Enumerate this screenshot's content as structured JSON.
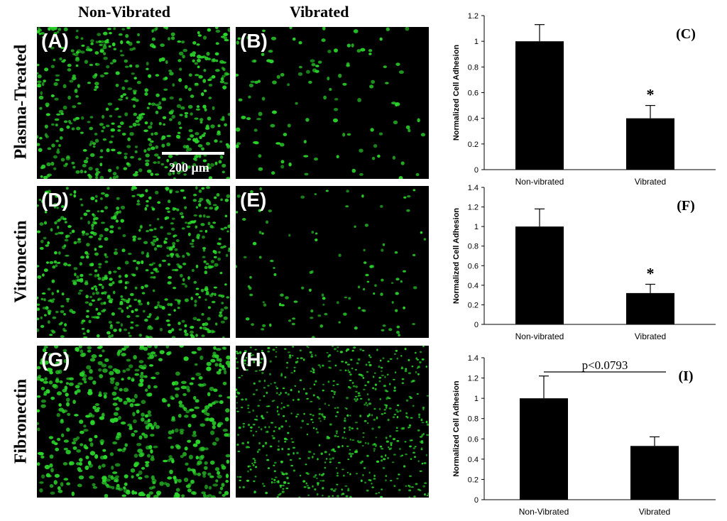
{
  "columns": {
    "non_vibrated": "Non-Vibrated",
    "vibrated": "Vibrated"
  },
  "rows": {
    "plasma": "Plasma-Treated",
    "vitronectin": "Vitronectin",
    "fibronectin": "Fibronectin"
  },
  "panels": {
    "a": "(A)",
    "b": "(B)",
    "d": "(D)",
    "e": "(E)",
    "g": "(G)",
    "h": "(H)"
  },
  "scale_bar": "200 μm",
  "colors": {
    "cells": "#2bd62b",
    "background": "#000000",
    "bars": "#000000"
  },
  "chart_data": [
    {
      "type": "bar",
      "panel_label": "(C)",
      "categories": [
        "Non-vibrated",
        "Vibrated"
      ],
      "values": [
        1.0,
        0.4
      ],
      "errors": [
        0.13,
        0.1
      ],
      "annotations": [
        "",
        "*"
      ],
      "ylabel": "Normalized Cell Adhesion",
      "ylim": [
        0,
        1.2
      ],
      "yticks": [
        "0",
        "0.2",
        "0.4",
        "0.6",
        "0.8",
        "1",
        "1.2"
      ]
    },
    {
      "type": "bar",
      "panel_label": "(F)",
      "categories": [
        "Non-vibrated",
        "Vibrated"
      ],
      "values": [
        1.0,
        0.32
      ],
      "errors": [
        0.18,
        0.09
      ],
      "annotations": [
        "",
        "*"
      ],
      "ylabel": "Normalized Cell Adhesion",
      "ylim": [
        0,
        1.4
      ],
      "yticks": [
        "0",
        "0.2",
        "0.4",
        "0.6",
        "0.8",
        "1",
        "1.2",
        "1.4"
      ]
    },
    {
      "type": "bar",
      "panel_label": "(I)",
      "categories": [
        "Non-Vibrated",
        "Vibrated"
      ],
      "values": [
        1.0,
        0.53
      ],
      "errors": [
        0.22,
        0.09
      ],
      "annotations": [
        "",
        ""
      ],
      "bracket_text": "p<0.0793",
      "ylabel": "Normalized Cell Adhesion",
      "ylim": [
        0,
        1.4
      ],
      "yticks": [
        "0",
        "0.2",
        "0.4",
        "0.6",
        "0.8",
        "1",
        "1.2",
        "1.4"
      ]
    }
  ]
}
